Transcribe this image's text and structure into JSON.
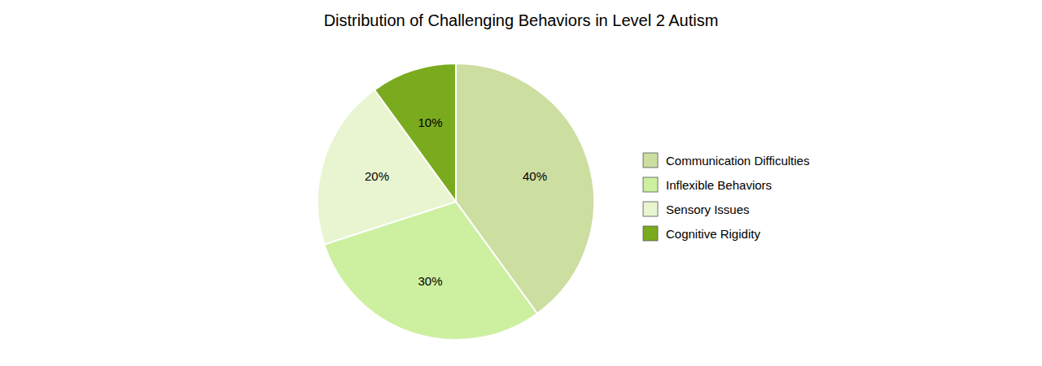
{
  "chart_data": {
    "type": "pie",
    "title": "Distribution of Challenging Behaviors in Level 2 Autism",
    "categories": [
      "Communication Difficulties",
      "Inflexible Behaviors",
      "Sensory Issues",
      "Cognitive Rigidity"
    ],
    "values": [
      40,
      30,
      20,
      10
    ],
    "value_labels": [
      "40%",
      "30%",
      "20%",
      "10%"
    ],
    "colors": [
      "#ccdea0",
      "#ccf0a0",
      "#e8f5d0",
      "#7aaa1e"
    ],
    "data_labels": true,
    "legend": "right"
  }
}
